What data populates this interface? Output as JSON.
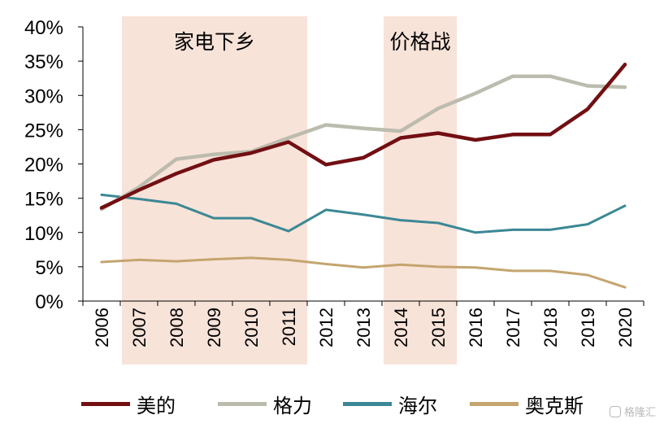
{
  "chart_data": {
    "type": "line",
    "categories": [
      "2006",
      "2007",
      "2008",
      "2009",
      "2010",
      "2011",
      "2012",
      "2013",
      "2014",
      "2015",
      "2016",
      "2017",
      "2018",
      "2019",
      "2020"
    ],
    "y_ticks": [
      "0%",
      "5%",
      "10%",
      "15%",
      "20%",
      "25%",
      "30%",
      "35%",
      "40%"
    ],
    "ylim": [
      0,
      40
    ],
    "unit": "%",
    "grid": false,
    "legend_position": "bottom",
    "shaded_periods": [
      {
        "label": "家电下乡",
        "start": "2007",
        "end": "2011",
        "color": "#f8e3d9"
      },
      {
        "label": "价格战",
        "start": "2014",
        "end": "2015",
        "color": "#f8e3d9"
      }
    ],
    "series": [
      {
        "name": "美的",
        "color": "#720f12",
        "values": [
          13.6,
          16.2,
          18.6,
          20.6,
          21.6,
          23.2,
          19.9,
          20.9,
          23.8,
          24.5,
          23.5,
          24.3,
          24.3,
          28.0,
          34.5
        ]
      },
      {
        "name": "格力",
        "color": "#bcbcae",
        "values": [
          13.4,
          16.6,
          20.7,
          21.4,
          21.8,
          23.8,
          25.7,
          25.2,
          24.8,
          28.1,
          30.3,
          32.8,
          32.8,
          31.4,
          31.2
        ]
      },
      {
        "name": "海尔",
        "color": "#3b8894",
        "values": [
          15.5,
          14.9,
          14.2,
          12.1,
          12.1,
          10.2,
          13.3,
          12.6,
          11.8,
          11.4,
          10.0,
          10.4,
          10.4,
          11.2,
          13.9
        ]
      },
      {
        "name": "奥克斯",
        "color": "#c4a56e",
        "values": [
          5.7,
          6.0,
          5.8,
          6.1,
          6.3,
          6.0,
          5.4,
          4.9,
          5.3,
          5.0,
          4.9,
          4.4,
          4.4,
          3.8,
          2.0
        ]
      }
    ]
  },
  "watermark": {
    "text": "格隆汇"
  }
}
